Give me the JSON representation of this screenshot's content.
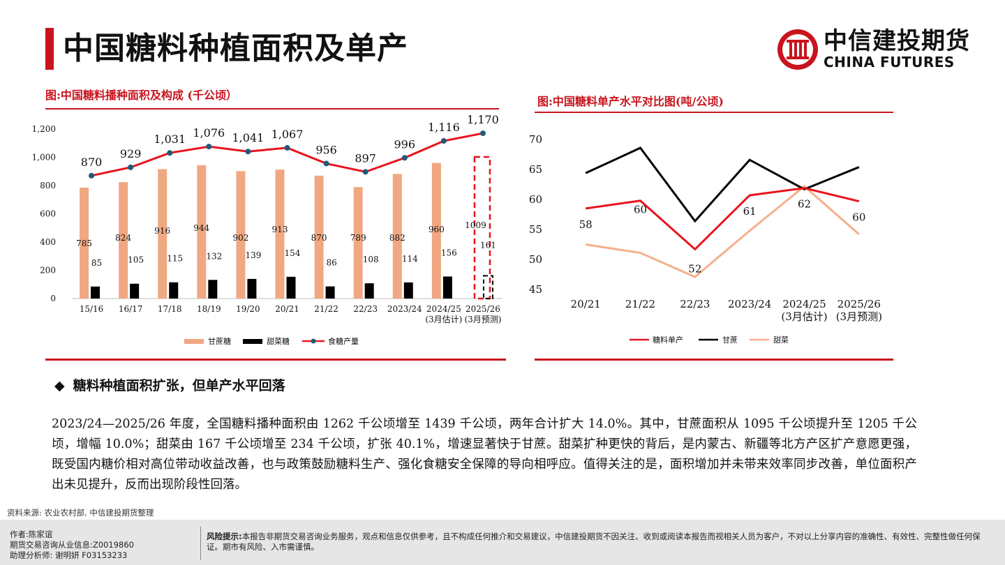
{
  "page": {
    "title": "中国糖料种植面积及单产",
    "logo_cn": "中信建投期货",
    "logo_en": "CHINA FUTURES",
    "brand_color": "#c8141e"
  },
  "chart_left": {
    "heading": "图:中国糖料播种面积及构成 (千公顷）",
    "legend": [
      "甘蔗糖",
      "甜菜糖",
      "食糖产量"
    ]
  },
  "chart_right": {
    "heading": "图:中国糖料单产水平对比图(吨/公顷)",
    "legend": [
      "糖料单产",
      "甘蔗",
      "甜菜"
    ]
  },
  "chart_data": [
    {
      "type": "bar",
      "categories": [
        "15/16",
        "16/17",
        "17/18",
        "18/19",
        "19/20",
        "20/21",
        "21/22",
        "22/23",
        "2023/24",
        "2024/25\n(3月估计)",
        "2025/26\n(3月预测)"
      ],
      "series": [
        {
          "name": "甘蔗糖",
          "type": "bar",
          "color": "#f0a882",
          "values": [
            785,
            824,
            916,
            944,
            902,
            913,
            870,
            789,
            882,
            960,
            1009
          ]
        },
        {
          "name": "甜菜糖",
          "type": "bar",
          "color": "#000000",
          "values": [
            85,
            105,
            115,
            132,
            139,
            154,
            86,
            108,
            114,
            156,
            161
          ]
        },
        {
          "name": "食糖产量",
          "type": "line",
          "color": "#e8141e",
          "marker_color": "#1f5a7a",
          "values": [
            870,
            929,
            1031,
            1076,
            1041,
            1067,
            956,
            897,
            996,
            1116,
            1170
          ]
        }
      ],
      "y_ticks": [
        "0",
        "200",
        "400",
        "600",
        "800",
        "1,000",
        "1,200"
      ],
      "ylim": [
        0,
        1200
      ],
      "highlight": "2025/26 dashed outline (forecast)",
      "legend_position": "bottom"
    },
    {
      "type": "line",
      "categories": [
        "20/21",
        "21/22",
        "22/23",
        "2023/24",
        "2024/25\n(3月估计)",
        "2025/26\n(3月预测)"
      ],
      "series": [
        {
          "name": "糖料单产",
          "color": "#e8141e",
          "values": [
            58.5,
            59.8,
            51.7,
            60.7,
            61.9,
            59.7
          ],
          "labels": [
            "58",
            "60",
            "52",
            "61",
            "62",
            "60"
          ]
        },
        {
          "name": "甘蔗",
          "color": "#000000",
          "values": [
            64.4,
            68.6,
            56.4,
            66.6,
            61.7,
            65.4
          ]
        },
        {
          "name": "甜菜",
          "color": "#f4b08c",
          "values": [
            52.5,
            51.1,
            47.1,
            54.8,
            62.2,
            54.2
          ]
        }
      ],
      "y_ticks": [
        "45",
        "50",
        "55",
        "60",
        "65",
        "70"
      ],
      "ylim": [
        45,
        70
      ],
      "legend_position": "bottom"
    }
  ],
  "bullet": {
    "marker": "◆",
    "text": "糖料种植面积扩张，但单产水平回落"
  },
  "body": "2023/24—2025/26 年度，全国糖料播种面积由 1262 千公顷增至 1439 千公顷，两年合计扩大 14.0%。其中，甘蔗面积从 1095 千公顷提升至 1205 千公顷，增幅 10.0%；甜菜由 167 千公顷增至 234 千公顷，扩张 40.1%，增速显著快于甘蔗。甜菜扩种更快的背后，是内蒙古、新疆等北方产区扩产意愿更强，既受国内糖价相对高位带动收益改善，也与政策鼓励糖料生产、强化食糖安全保障的导向相呼应。值得关注的是，面积增加并未带来效率同步改善，单位面积产出未见提升，反而出现阶段性回落。",
  "source": "资料来源: 农业农村部, 中信建投期货整理",
  "footer": {
    "author": "作者:陈家谊",
    "license": "期货交易咨询从业信息:Z0019860",
    "assistant": "助理分析师: 谢明妍 F03153233",
    "risk_label": "风险提示:",
    "risk_text": "本报告非期货交易咨询业务服务，观点和信息仅供参考，且不构成任何推介和交易建议，中信建投期货不因关注、收到或阅读本报告而视相关人员为客户，不对以上分享内容的准确性、有效性、完整性做任何保证。期市有风险、入市需谨慎。"
  }
}
